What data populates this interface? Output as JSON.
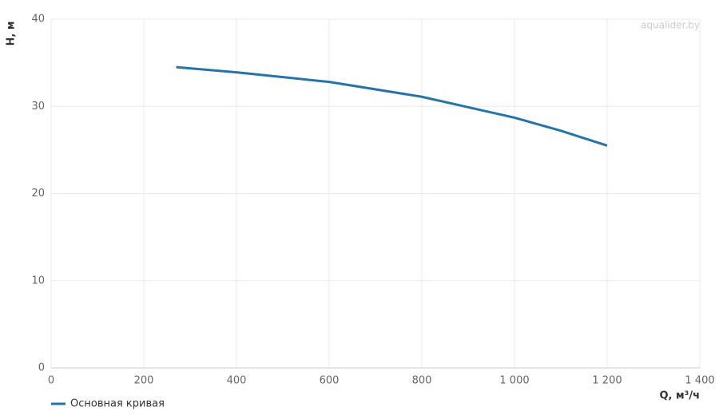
{
  "chart_data": {
    "type": "line",
    "x_label": "Q, м³/ч",
    "y_label": "H, м",
    "watermark": "aqualider.by",
    "xlim": [
      0,
      1400
    ],
    "ylim": [
      0,
      40
    ],
    "xticks": [
      0,
      200,
      400,
      600,
      800,
      {
        "value": 1000,
        "label": "1 000"
      },
      {
        "value": 1200,
        "label": "1 200"
      },
      {
        "value": 1400,
        "label": "1 400"
      }
    ],
    "yticks": [
      0,
      10,
      20,
      30,
      40
    ],
    "grid": true,
    "legend": "bottom-left",
    "x": [
      270,
      400,
      600,
      800,
      1000,
      1100,
      1200
    ],
    "series": [
      {
        "name": "Основная кривая",
        "color": "#2574a9",
        "values": [
          34.5,
          33.9,
          32.8,
          31.1,
          28.7,
          27.2,
          25.5
        ]
      }
    ]
  }
}
